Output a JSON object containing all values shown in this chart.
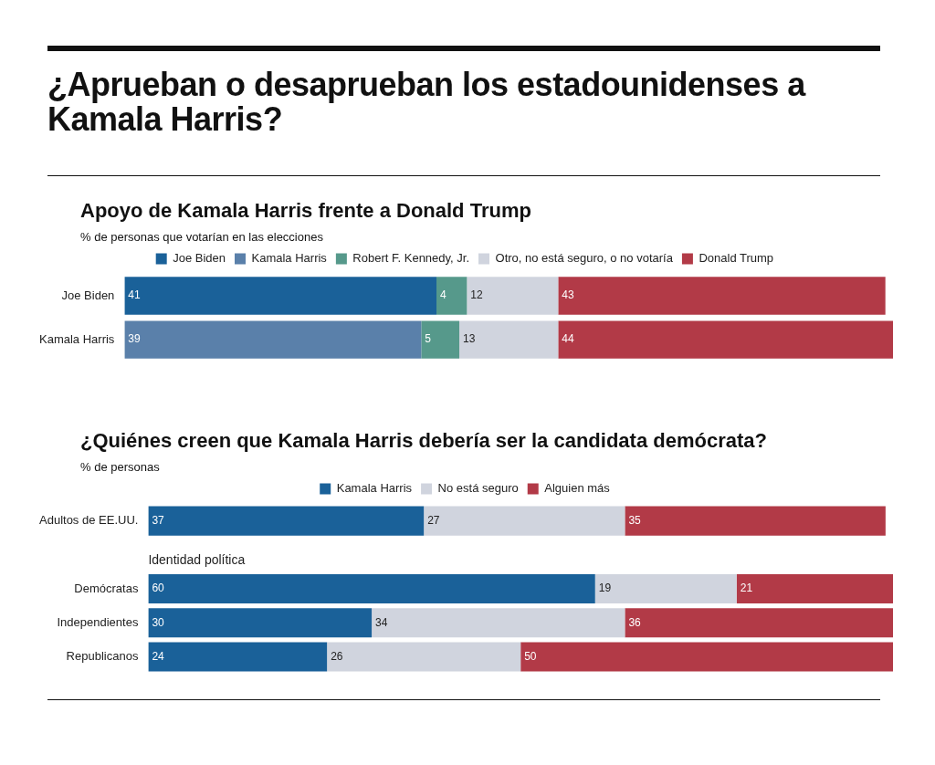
{
  "chart_data": [
    {
      "type": "other",
      "title": "¿Aprueban o desaprueban los estadounidenses a Kamala Harris?"
    },
    {
      "type": "bar",
      "orientation": "horizontal",
      "stacked": true,
      "title": "Apoyo de Kamala Harris frente a Donald Trump",
      "subtitle": "% de personas que votarían en las elecciones",
      "categories": [
        "Joe Biden",
        "Kamala Harris"
      ],
      "series": [
        {
          "name": "Joe Biden",
          "color": "#1a6199",
          "values": [
            41,
            null
          ]
        },
        {
          "name": "Kamala Harris",
          "color": "#5a80aa",
          "values": [
            null,
            39
          ]
        },
        {
          "name": "Robert F. Kennedy, Jr.",
          "color": "#56998b",
          "values": [
            4,
            5
          ]
        },
        {
          "name": "Otro, no está seguro, o no votaría",
          "color": "#d0d4de",
          "values": [
            12,
            13
          ]
        },
        {
          "name": "Donald Trump",
          "color": "#b23a47",
          "values": [
            43,
            44
          ]
        }
      ],
      "xlim": [
        0,
        101
      ],
      "tick_labels": "y",
      "data_labels": true,
      "legend": "top",
      "grid": false
    },
    {
      "type": "bar",
      "orientation": "horizontal",
      "stacked": true,
      "title": "¿Quiénes creen que Kamala Harris debería ser la candidata demócrata?",
      "subtitle": "% de personas",
      "categories": [
        "Adultos de EE.UU.",
        null,
        "Demócratas",
        "Independientes",
        "Republicanos"
      ],
      "series": [
        {
          "name": "Kamala Harris",
          "color": "#1a6199",
          "values": [
            37,
            null,
            60,
            30,
            24
          ]
        },
        {
          "name": "No está seguro",
          "color": "#d0d4de",
          "values": [
            27,
            null,
            19,
            34,
            26
          ]
        },
        {
          "name": "Alguien más",
          "color": "#b23a47",
          "values": [
            35,
            null,
            21,
            36,
            50
          ]
        }
      ],
      "xlim": [
        0,
        100
      ],
      "tick_labels": "y",
      "data_labels": true,
      "legend": "top",
      "grid": false,
      "annotations": [
        "Identidad política"
      ]
    }
  ]
}
